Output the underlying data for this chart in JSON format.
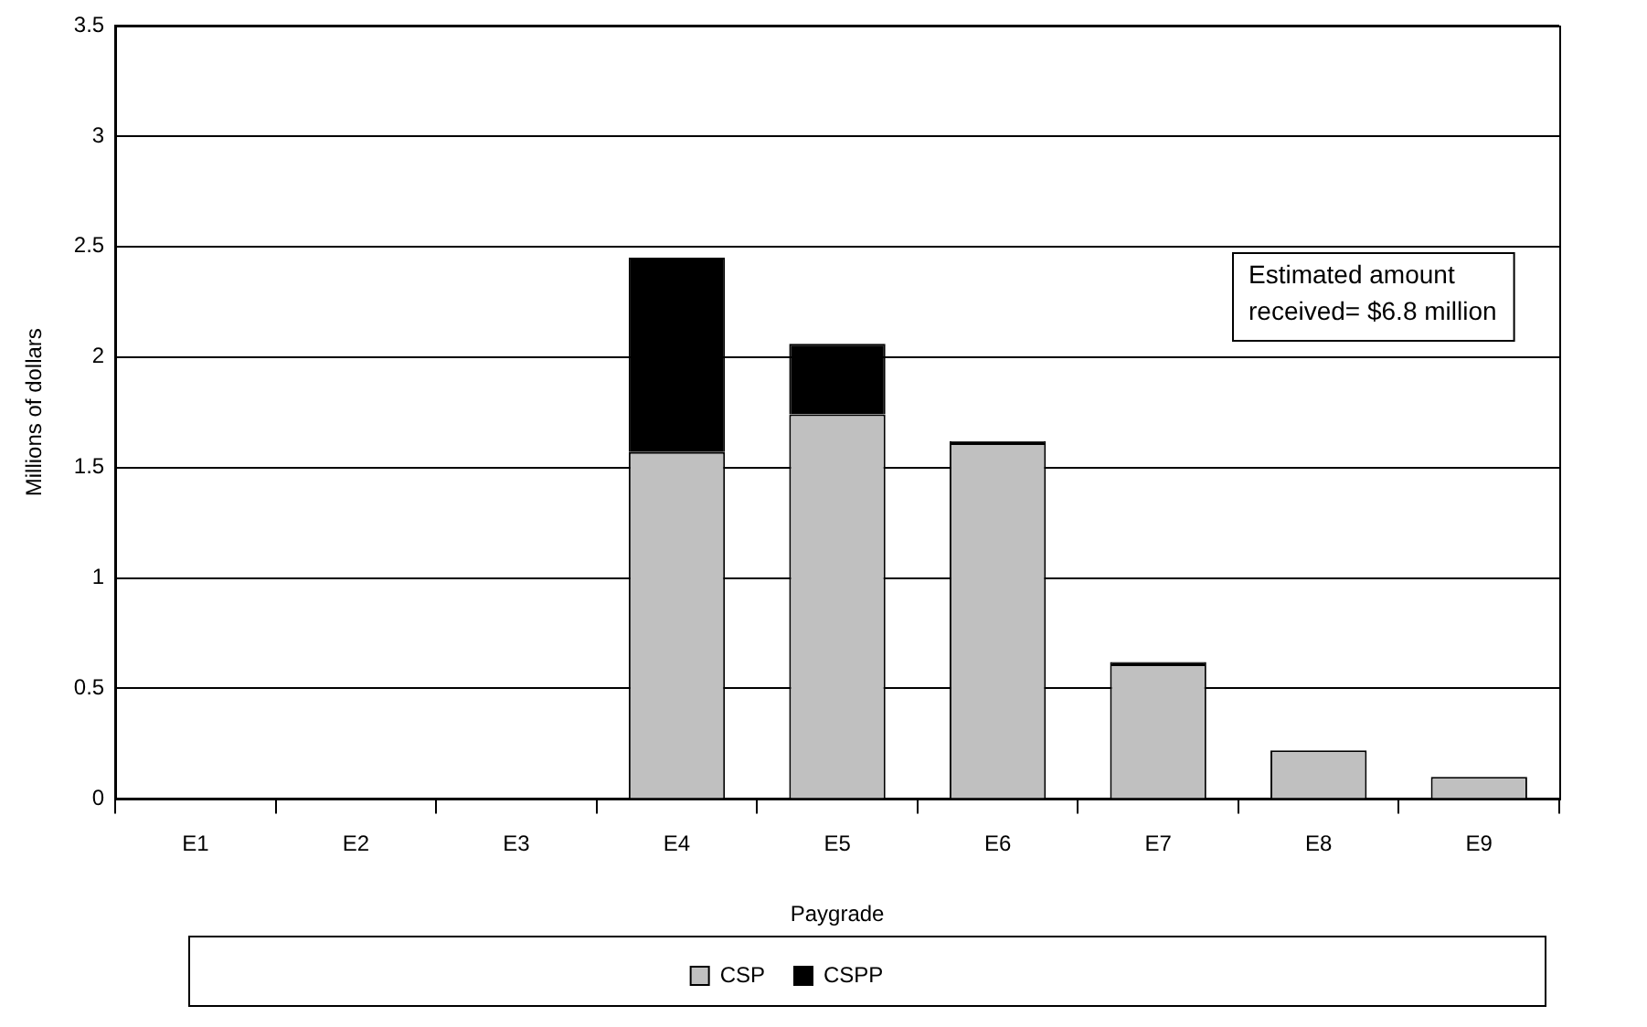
{
  "chart_data": {
    "type": "bar",
    "stacked": true,
    "xlabel": "Paygrade",
    "ylabel": "Millions of dollars",
    "categories": [
      "E1",
      "E2",
      "E3",
      "E4",
      "E5",
      "E6",
      "E7",
      "E8",
      "E9"
    ],
    "series": [
      {
        "name": "CSP",
        "color": "#c0c0c0",
        "values": [
          0,
          0,
          0,
          1.57,
          1.74,
          1.61,
          0.61,
          0.22,
          0.1
        ]
      },
      {
        "name": "CSPP",
        "color": "#000000",
        "values": [
          0,
          0,
          0,
          0.88,
          0.32,
          0.01,
          0.01,
          0,
          0
        ]
      }
    ],
    "ylim": [
      0,
      3.5
    ],
    "yticks": [
      0,
      0.5,
      1,
      1.5,
      2,
      2.5,
      3,
      3.5
    ],
    "grid": "y",
    "legend": "bottom",
    "annotations": [
      "Estimated amount received= $6.8 million"
    ]
  }
}
